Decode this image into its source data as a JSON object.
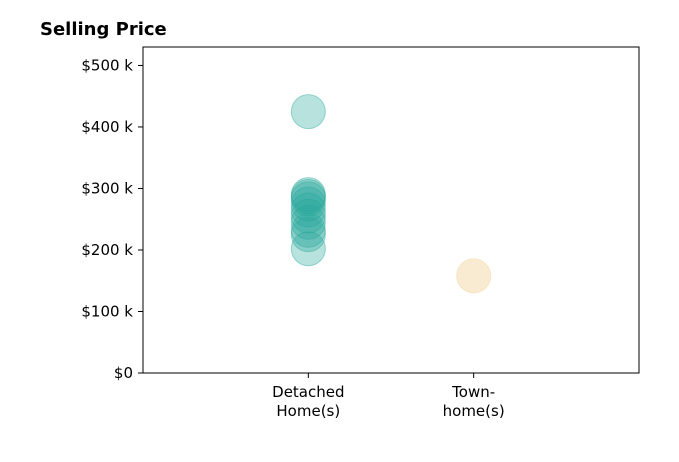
{
  "chart_data": {
    "type": "scatter",
    "title": "Selling Price",
    "xlabel": "",
    "ylabel": "",
    "categories": [
      [
        "Detached",
        "Home(s)"
      ],
      [
        "Town-",
        "home(s)"
      ]
    ],
    "y_ticks": [
      {
        "value": 0,
        "label": "$0"
      },
      {
        "value": 100000,
        "label": "$100 k"
      },
      {
        "value": 200000,
        "label": "$200 k"
      },
      {
        "value": 300000,
        "label": "$300 k"
      },
      {
        "value": 400000,
        "label": "$400 k"
      },
      {
        "value": 500000,
        "label": "$500 k"
      }
    ],
    "ylim": [
      0,
      530000
    ],
    "xlim": [
      -1,
      2
    ],
    "grid": false,
    "series": [
      {
        "category_index": 0,
        "color": "#26a69a",
        "opacity": 0.33,
        "values": [
          202000,
          225000,
          232000,
          245000,
          255000,
          265000,
          275000,
          283000,
          287000,
          290000,
          425000
        ]
      },
      {
        "category_index": 1,
        "color": "#f5deb3",
        "opacity": 0.6,
        "values": [
          158000
        ]
      }
    ]
  }
}
